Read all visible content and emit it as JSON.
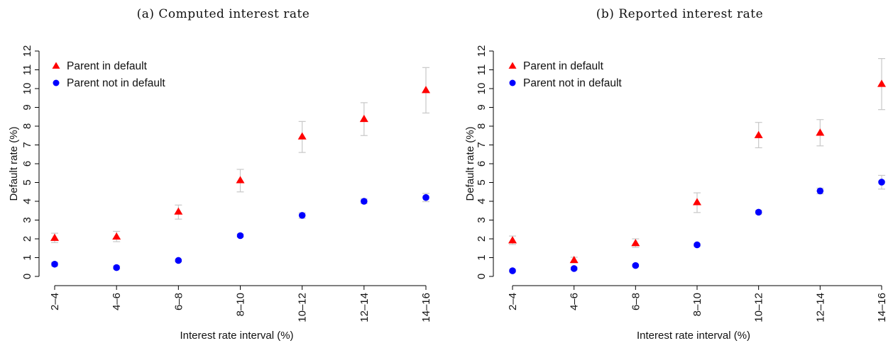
{
  "chart_data": [
    {
      "type": "scatter",
      "title": "(a) Computed interest rate",
      "xlabel": "Interest rate interval (%)",
      "ylabel": "Default rate (%)",
      "categories": [
        "2–4",
        "4–6",
        "6–8",
        "8–10",
        "10–12",
        "12–14",
        "14–16"
      ],
      "ylim": [
        0,
        12
      ],
      "yticks": [
        0,
        1,
        2,
        3,
        4,
        5,
        6,
        7,
        8,
        9,
        10,
        11,
        12
      ],
      "grid": false,
      "legend_position": "top-left",
      "series": [
        {
          "name": "Parent in default",
          "marker": "triangle",
          "color": "#ff0000",
          "values": [
            2.05,
            2.12,
            3.45,
            5.12,
            7.45,
            8.38,
            9.92
          ],
          "ci_low": [
            1.8,
            1.85,
            3.05,
            4.5,
            6.6,
            7.5,
            8.7
          ],
          "ci_high": [
            2.3,
            2.4,
            3.8,
            5.7,
            8.25,
            9.25,
            11.12
          ]
        },
        {
          "name": "Parent not in default",
          "marker": "circle",
          "color": "#0000ff",
          "values": [
            0.65,
            0.47,
            0.85,
            2.17,
            3.25,
            4.0,
            4.2
          ],
          "ci_low": [
            0.55,
            0.4,
            0.78,
            2.1,
            3.1,
            3.88,
            3.98
          ],
          "ci_high": [
            0.75,
            0.55,
            0.92,
            2.25,
            3.38,
            4.12,
            4.42
          ]
        }
      ]
    },
    {
      "type": "scatter",
      "title": "(b) Reported interest rate",
      "xlabel": "Interest rate interval (%)",
      "ylabel": "Default rate (%)",
      "categories": [
        "2–4",
        "4–6",
        "6–8",
        "8–10",
        "10–12",
        "12–14",
        "14–16"
      ],
      "ylim": [
        0,
        12
      ],
      "yticks": [
        0,
        1,
        2,
        3,
        4,
        5,
        6,
        7,
        8,
        9,
        10,
        11,
        12
      ],
      "grid": false,
      "legend_position": "top-left",
      "series": [
        {
          "name": "Parent in default",
          "marker": "triangle",
          "color": "#ff0000",
          "values": [
            1.92,
            0.87,
            1.77,
            3.95,
            7.52,
            7.65,
            10.25
          ],
          "ci_low": [
            1.7,
            0.72,
            1.55,
            3.4,
            6.85,
            6.95,
            8.88
          ],
          "ci_high": [
            2.15,
            1.02,
            2.0,
            4.45,
            8.2,
            8.35,
            11.6
          ]
        },
        {
          "name": "Parent not in default",
          "marker": "circle",
          "color": "#0000ff",
          "values": [
            0.3,
            0.42,
            0.58,
            1.68,
            3.42,
            4.55,
            5.02
          ],
          "ci_low": [
            0.24,
            0.35,
            0.52,
            1.62,
            3.32,
            4.4,
            4.65
          ],
          "ci_high": [
            0.36,
            0.49,
            0.64,
            1.74,
            3.52,
            4.7,
            5.38
          ]
        }
      ]
    }
  ]
}
